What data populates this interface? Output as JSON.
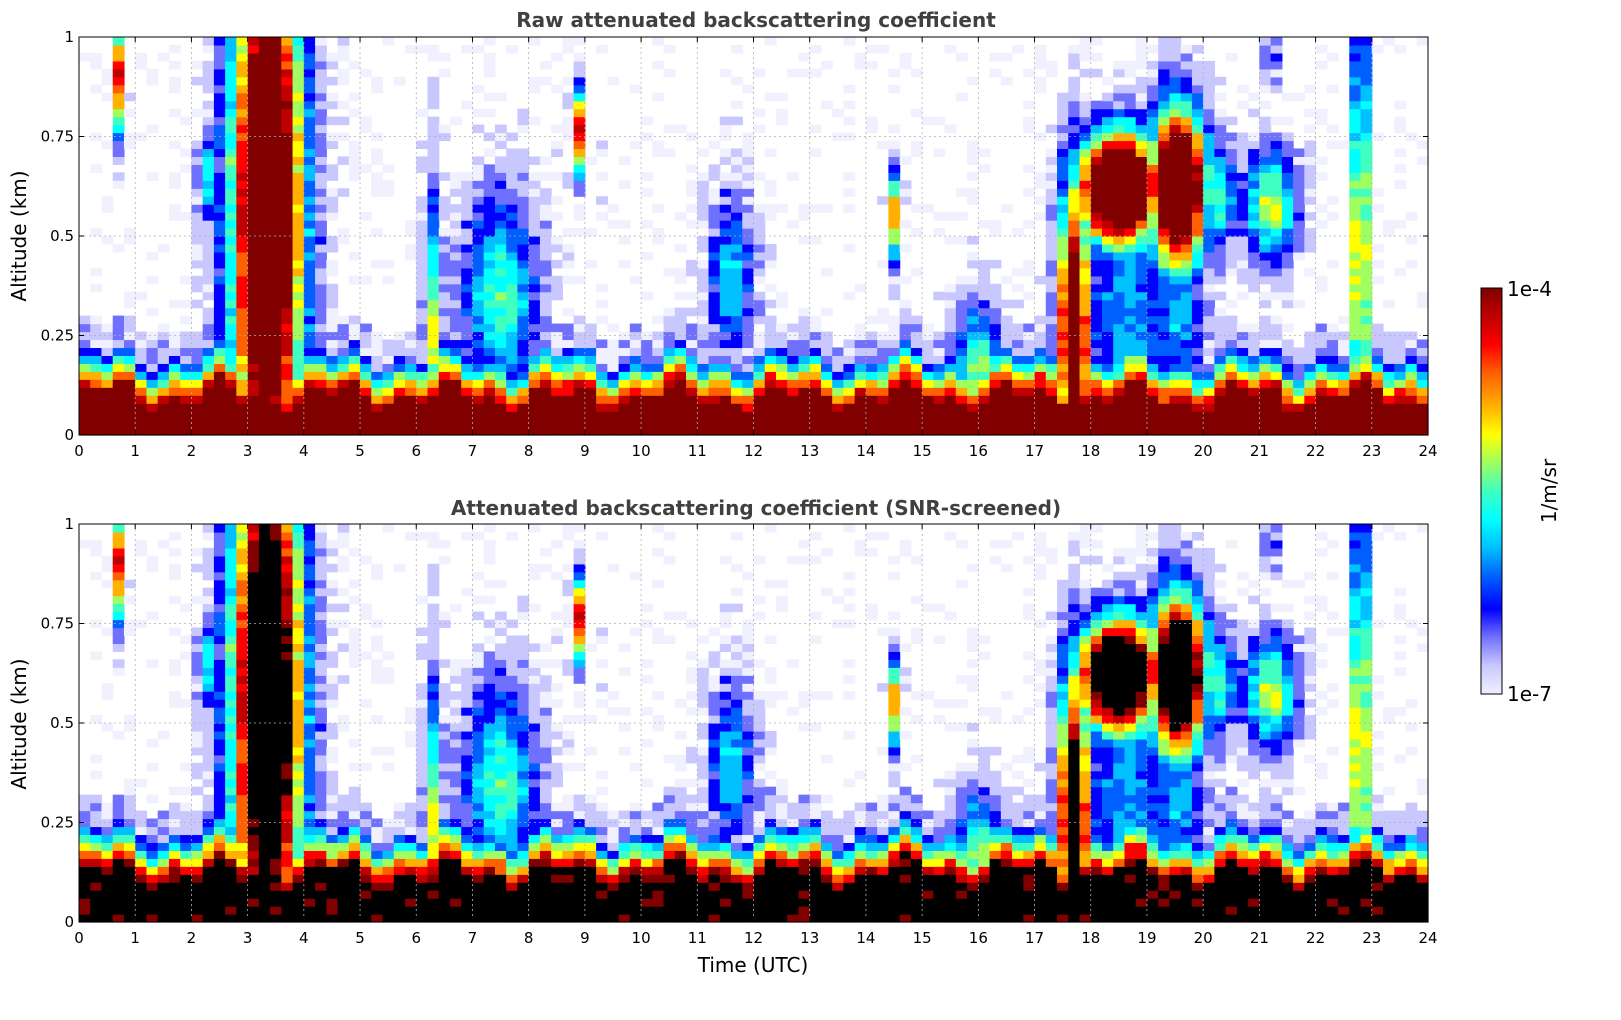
{
  "chart_data": [
    {
      "type": "heatmap",
      "title": "Raw attenuated backscattering coefficient",
      "xlabel": "",
      "ylabel": "Altitude (km)",
      "xlim": [
        0,
        24
      ],
      "ylim": [
        0,
        1
      ],
      "xticks": [
        0,
        1,
        2,
        3,
        4,
        5,
        6,
        7,
        8,
        9,
        10,
        11,
        12,
        13,
        14,
        15,
        16,
        17,
        18,
        19,
        20,
        21,
        22,
        23,
        24
      ],
      "xtick_labels": [
        "0",
        "1",
        "2",
        "3",
        "4",
        "5",
        "6",
        "7",
        "8",
        "9",
        "10",
        "11",
        "12",
        "13",
        "14",
        "15",
        "16",
        "17",
        "18",
        "19",
        "20",
        "21",
        "22",
        "23",
        "24"
      ],
      "yticks": [
        0,
        0.25,
        0.5,
        0.75,
        1
      ],
      "ytick_labels": [
        "0",
        "0.25",
        "0.5",
        "0.75",
        "1"
      ],
      "grid": true,
      "screened": false,
      "features": {
        "surface_layer_top_km": 0.2,
        "cloud_layers": [
          {
            "t_start": 2.9,
            "t_end": 3.8,
            "alt_bottom": 0.0,
            "alt_top": 1.0,
            "intensity": "high"
          },
          {
            "t_start": 17.5,
            "t_end": 18.0,
            "alt_bottom": 0.0,
            "alt_top": 0.45,
            "intensity": "high"
          },
          {
            "t_start": 18.0,
            "t_end": 19.0,
            "alt_bottom": 0.5,
            "alt_top": 0.75,
            "intensity": "high"
          },
          {
            "t_start": 19.2,
            "t_end": 19.9,
            "alt_bottom": 0.5,
            "alt_top": 0.8,
            "intensity": "high"
          },
          {
            "t_start": 22.7,
            "t_end": 22.9,
            "alt_bottom": 0.0,
            "alt_top": 0.8,
            "intensity": "high"
          },
          {
            "t_start": 8.8,
            "t_end": 8.9,
            "alt_bottom": 0.7,
            "alt_top": 0.85,
            "intensity": "high"
          }
        ]
      }
    },
    {
      "type": "heatmap",
      "title": "Attenuated backscattering coefficient (SNR-screened)",
      "xlabel": "Time (UTC)",
      "ylabel": "Altitude (km)",
      "xlim": [
        0,
        24
      ],
      "ylim": [
        0,
        1
      ],
      "xticks": [
        0,
        1,
        2,
        3,
        4,
        5,
        6,
        7,
        8,
        9,
        10,
        11,
        12,
        13,
        14,
        15,
        16,
        17,
        18,
        19,
        20,
        21,
        22,
        23,
        24
      ],
      "xtick_labels": [
        "0",
        "1",
        "2",
        "3",
        "4",
        "5",
        "6",
        "7",
        "8",
        "9",
        "10",
        "11",
        "12",
        "13",
        "14",
        "15",
        "16",
        "17",
        "18",
        "19",
        "20",
        "21",
        "22",
        "23",
        "24"
      ],
      "yticks": [
        0,
        0.25,
        0.5,
        0.75,
        1
      ],
      "ytick_labels": [
        "0",
        "0.25",
        "0.5",
        "0.75",
        "1"
      ],
      "grid": true,
      "screened": true,
      "features": {
        "surface_layer_top_km": 0.22,
        "saturated_values_shown_black": true
      }
    }
  ],
  "colorbar": {
    "label": "1/m/sr",
    "min_label": "1e-7",
    "max_label": "1e-4",
    "scale": "log",
    "colormap": "jet",
    "colors": [
      "#f0f0ff",
      "#c8c8ff",
      "#7070ff",
      "#0000ff",
      "#0060ff",
      "#00c0ff",
      "#00ffff",
      "#40ffc0",
      "#a0ff60",
      "#ffff00",
      "#ffb000",
      "#ff6000",
      "#ff0000",
      "#c00000",
      "#800000"
    ]
  }
}
